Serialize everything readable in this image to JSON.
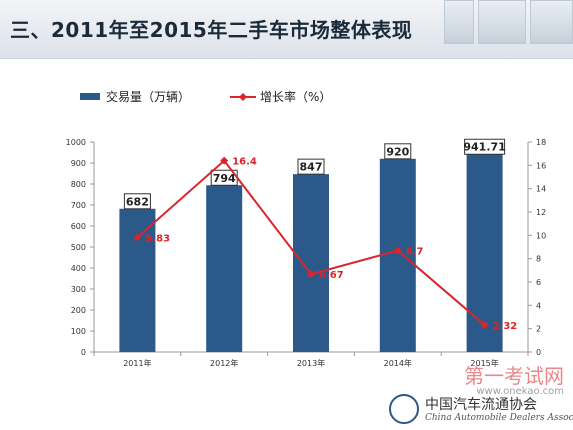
{
  "header": {
    "title": "三、2011年至2015年二手车市场整体表现"
  },
  "chart_data": {
    "type": "bar",
    "categories": [
      "2011年",
      "2012年",
      "2013年",
      "2014年",
      "2015年"
    ],
    "series": [
      {
        "name": "交易量（万辆）",
        "type": "bar",
        "axis": "left",
        "values": [
          682,
          794,
          847,
          920,
          941.71
        ],
        "labels": [
          "682",
          "794",
          "847",
          "920",
          "941.71"
        ]
      },
      {
        "name": "增长率（%）",
        "type": "line",
        "axis": "right",
        "values": [
          9.83,
          16.4,
          6.67,
          8.7,
          2.32
        ],
        "labels": [
          "9.83",
          "16.4",
          "6.67",
          "8.7",
          "2.32"
        ]
      }
    ],
    "y_left": {
      "ylim": [
        0,
        1000
      ],
      "ticks": [
        "0",
        "100",
        "200",
        "300",
        "400",
        "500",
        "600",
        "700",
        "800",
        "900",
        "1000"
      ]
    },
    "y_right": {
      "ylim": [
        0,
        18
      ],
      "ticks": [
        "0",
        "2",
        "4",
        "6",
        "8",
        "10",
        "12",
        "14",
        "16",
        "18"
      ]
    },
    "legend_position": "top-left",
    "colors": {
      "bar": "#2b5a8a",
      "line": "#d9252b"
    }
  },
  "watermark": {
    "site_cn": "第一考试网",
    "site_url": "www.onekao.com"
  },
  "logo": {
    "name_cn": "中国汽车流通协会",
    "name_en": "China Automobile Dealers Association",
    "badge": "CADA"
  }
}
